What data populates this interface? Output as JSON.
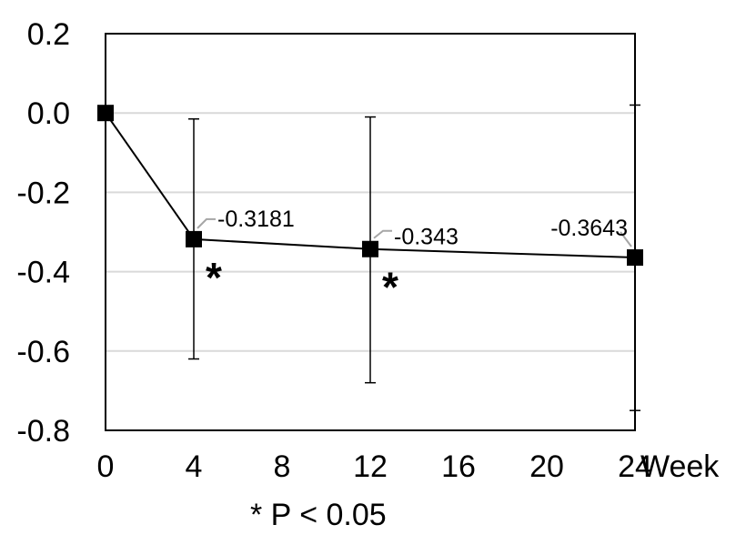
{
  "chart_data": {
    "type": "line",
    "x_ticks": [
      0,
      4,
      8,
      12,
      16,
      20,
      24
    ],
    "x_unit_label": "Week",
    "xlim": [
      0,
      24
    ],
    "ylim": [
      -0.8,
      0.2
    ],
    "y_ticks": [
      0.2,
      0.0,
      -0.2,
      -0.4,
      -0.6,
      -0.8
    ],
    "y_tick_labels": [
      "0.2",
      "0.0",
      "-0.2",
      "-0.4",
      "-0.6",
      "-0.8"
    ],
    "grid": {
      "horizontal": true,
      "vertical": false
    },
    "series": [
      {
        "x": [
          0,
          4,
          12,
          24
        ],
        "y": [
          0,
          -0.3181,
          -0.343,
          -0.3643
        ],
        "error_low": [
          null,
          -0.62,
          -0.68,
          -0.75
        ],
        "error_high": [
          null,
          -0.015,
          -0.01,
          0.02
        ],
        "labels": [
          "",
          "-0.3181",
          "-0.343",
          "-0.3643"
        ],
        "significant": [
          false,
          true,
          true,
          false
        ]
      }
    ],
    "significance_symbol": "*",
    "footnote": "* P < 0.05",
    "colors": {
      "line": "#000000",
      "marker": "#000000",
      "grid": "#d9d9d9",
      "leader": "#a6a6a6",
      "frame": "#000000"
    }
  }
}
